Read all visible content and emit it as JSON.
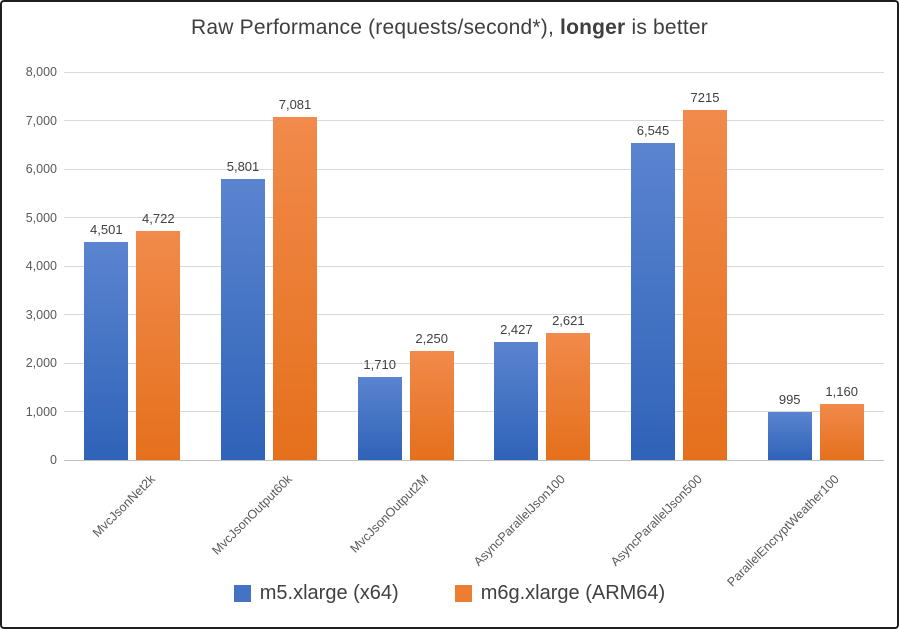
{
  "title": {
    "prefix": "Raw Performance (requests/second*), ",
    "bold_word": "longer",
    "suffix": " is better"
  },
  "chart_data": {
    "type": "bar",
    "title": "Raw Performance (requests/second*), longer is better",
    "categories": [
      "MvcJsonNet2k",
      "MvcJsonOutput60k",
      "MvcJsonOutput2M",
      "AsyncParallelJson100",
      "AsyncParallelJson500",
      "ParallelEncryptWeather100"
    ],
    "series": [
      {
        "name": "m5.xlarge (x64)",
        "color": "#4472C4",
        "gradient_top": "#5b84d0",
        "gradient_bottom": "#2f63b8",
        "values": [
          4501,
          5801,
          1710,
          2427,
          6545,
          995
        ],
        "labels": [
          "4,501",
          "5,801",
          "1,710",
          "2,427",
          "6,545",
          "995"
        ]
      },
      {
        "name": "m6g.xlarge (ARM64)",
        "color": "#ED7D31",
        "gradient_top": "#f18a4b",
        "gradient_bottom": "#e5701c",
        "values": [
          4722,
          7081,
          2250,
          2621,
          7215,
          1160
        ],
        "labels": [
          "4,722",
          "7,081",
          "2,250",
          "2,621",
          "7215",
          "1,160"
        ]
      }
    ],
    "ylim": [
      0,
      8000
    ],
    "ytick_interval": 1000,
    "ytick_values": [
      0,
      1000,
      2000,
      3000,
      4000,
      5000,
      6000,
      7000,
      8000
    ],
    "ytick_labels": [
      "0",
      "1,000",
      "2,000",
      "3,000",
      "4,000",
      "5,000",
      "6,000",
      "7,000",
      "8,000"
    ],
    "grid": true,
    "legend_position": "bottom",
    "gridline_color": "#d9d9d9",
    "axis_line_color": "#bfbfbf",
    "text_color": "#595959",
    "label_color": "#404040"
  }
}
